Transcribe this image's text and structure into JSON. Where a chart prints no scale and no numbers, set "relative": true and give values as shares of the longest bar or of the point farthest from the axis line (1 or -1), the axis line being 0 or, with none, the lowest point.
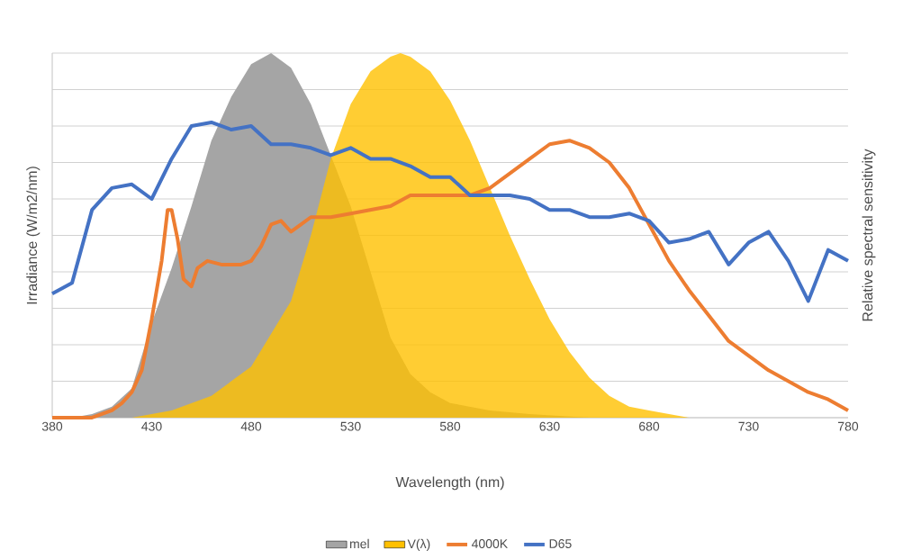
{
  "chart_data": {
    "type": "line",
    "xlabel": "Wavelength (nm)",
    "ylabel": "Irradiance (W/m2/nm)",
    "y2label": "Relative spectral sensitivity",
    "relative": true,
    "xlim": [
      380,
      780
    ],
    "xticks": [
      380,
      430,
      480,
      530,
      580,
      630,
      680,
      730,
      780
    ],
    "grid": "y",
    "legend": "bottom",
    "series": [
      {
        "name": "mel",
        "type": "area",
        "color": "#a5a5a5",
        "x": [
          380,
          390,
          400,
          410,
          420,
          430,
          440,
          450,
          460,
          470,
          480,
          490,
          500,
          510,
          520,
          530,
          540,
          550,
          560,
          570,
          580,
          600,
          620,
          650,
          780
        ],
        "values": [
          0,
          0,
          0.01,
          0.03,
          0.08,
          0.26,
          0.41,
          0.58,
          0.76,
          0.88,
          0.97,
          1,
          0.96,
          0.86,
          0.72,
          0.58,
          0.4,
          0.22,
          0.12,
          0.07,
          0.04,
          0.02,
          0.01,
          0,
          0
        ]
      },
      {
        "name": "V(λ)",
        "type": "area",
        "color": "#ffc000",
        "x": [
          420,
          440,
          460,
          480,
          500,
          510,
          520,
          530,
          540,
          550,
          555,
          560,
          570,
          580,
          590,
          600,
          610,
          620,
          630,
          640,
          650,
          660,
          670,
          680,
          690,
          700
        ],
        "values": [
          0,
          0.02,
          0.06,
          0.14,
          0.32,
          0.5,
          0.71,
          0.86,
          0.95,
          0.99,
          1,
          0.99,
          0.95,
          0.87,
          0.76,
          0.63,
          0.5,
          0.38,
          0.27,
          0.18,
          0.11,
          0.06,
          0.03,
          0.02,
          0.01,
          0
        ]
      },
      {
        "name": "4000K",
        "color": "#ed7d31",
        "x": [
          380,
          390,
          400,
          405,
          410,
          415,
          420,
          425,
          430,
          435,
          438,
          440,
          443,
          446,
          450,
          453,
          458,
          465,
          475,
          480,
          485,
          490,
          495,
          500,
          505,
          510,
          520,
          530,
          540,
          550,
          560,
          570,
          580,
          590,
          600,
          610,
          620,
          630,
          640,
          650,
          660,
          670,
          680,
          690,
          700,
          710,
          720,
          730,
          740,
          750,
          760,
          770,
          780
        ],
        "values": [
          0,
          0,
          0,
          0.01,
          0.02,
          0.04,
          0.07,
          0.13,
          0.27,
          0.43,
          0.57,
          0.57,
          0.49,
          0.38,
          0.36,
          0.41,
          0.43,
          0.42,
          0.42,
          0.43,
          0.47,
          0.53,
          0.54,
          0.51,
          0.53,
          0.55,
          0.55,
          0.56,
          0.57,
          0.58,
          0.61,
          0.61,
          0.61,
          0.61,
          0.63,
          0.67,
          0.71,
          0.75,
          0.76,
          0.74,
          0.7,
          0.63,
          0.53,
          0.43,
          0.35,
          0.28,
          0.21,
          0.17,
          0.13,
          0.1,
          0.07,
          0.05,
          0.02
        ]
      },
      {
        "name": "D65",
        "color": "#4472c4",
        "x": [
          380,
          390,
          400,
          410,
          420,
          430,
          440,
          450,
          460,
          470,
          480,
          490,
          500,
          510,
          520,
          530,
          540,
          550,
          560,
          570,
          580,
          590,
          600,
          610,
          620,
          630,
          640,
          650,
          660,
          670,
          680,
          690,
          700,
          710,
          720,
          730,
          740,
          750,
          760,
          770,
          780
        ],
        "values": [
          0.34,
          0.37,
          0.57,
          0.63,
          0.64,
          0.6,
          0.71,
          0.8,
          0.81,
          0.79,
          0.8,
          0.75,
          0.75,
          0.74,
          0.72,
          0.74,
          0.71,
          0.71,
          0.69,
          0.66,
          0.66,
          0.61,
          0.61,
          0.61,
          0.6,
          0.57,
          0.57,
          0.55,
          0.55,
          0.56,
          0.54,
          0.48,
          0.49,
          0.51,
          0.42,
          0.48,
          0.51,
          0.43,
          0.32,
          0.46,
          0.43
        ]
      }
    ]
  }
}
